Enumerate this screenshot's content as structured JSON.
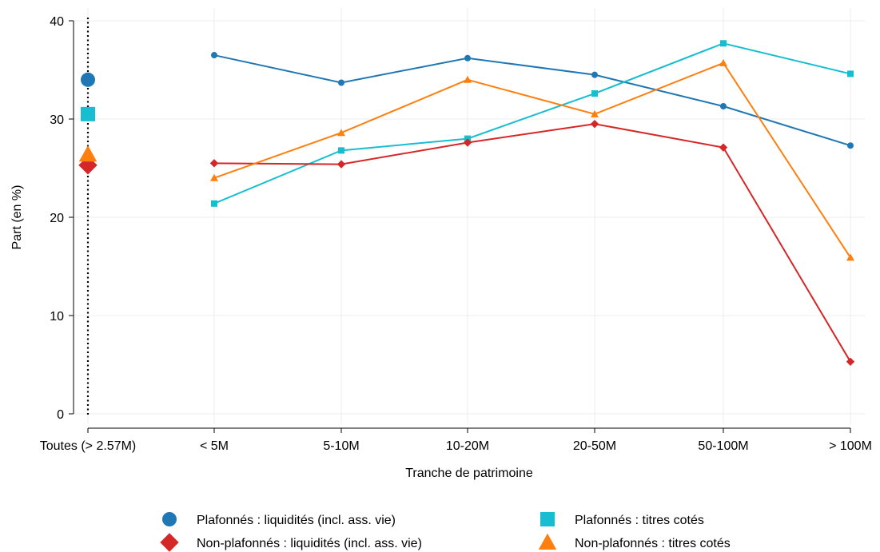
{
  "chart_data": {
    "type": "line",
    "xlabel": "Tranche de patrimoine",
    "ylabel": "Part (en %)",
    "ylim": [
      0,
      40
    ],
    "yticks": [
      0,
      10,
      20,
      30,
      40
    ],
    "grid": true,
    "legend_position": "bottom",
    "overall_category": "Toutes (> 2.57M)",
    "categories": [
      "< 5M",
      "5-10M",
      "10-20M",
      "20-50M",
      "50-100M",
      "> 100M"
    ],
    "series": [
      {
        "name": "Plafonnés : liquidités (incl. ass. vie)",
        "color": "#1f77b4",
        "marker": "circle",
        "overall": 34.0,
        "values": [
          36.5,
          33.7,
          36.2,
          34.5,
          31.3,
          27.3
        ]
      },
      {
        "name": "Plafonnés : titres cotés",
        "color": "#17becf",
        "marker": "square",
        "overall": 30.5,
        "values": [
          21.4,
          26.8,
          28.0,
          32.6,
          37.7,
          34.6
        ]
      },
      {
        "name": "Non-plafonnés : liquidités (incl. ass. vie)",
        "color": "#d62728",
        "marker": "diamond",
        "overall": 25.3,
        "values": [
          25.5,
          25.4,
          27.6,
          29.5,
          27.1,
          5.3
        ]
      },
      {
        "name": "Non-plafonnés : titres cotés",
        "color": "#ff7f0e",
        "marker": "triangle",
        "overall": 26.4,
        "values": [
          24.0,
          28.6,
          34.0,
          30.5,
          35.7,
          15.9
        ]
      }
    ]
  }
}
